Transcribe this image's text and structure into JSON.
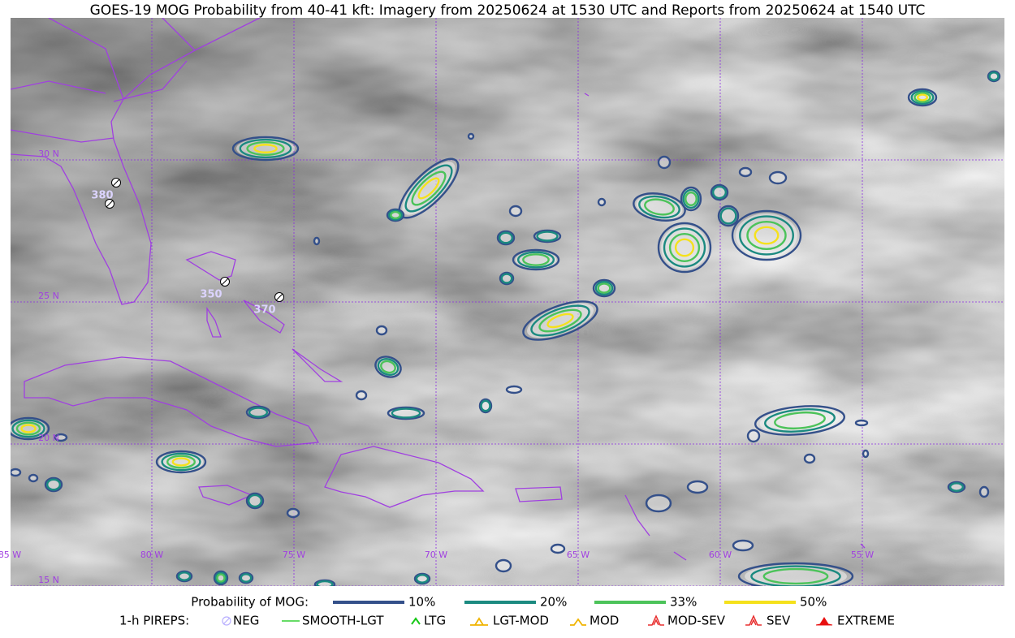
{
  "title": "GOES-19 MOG Probability from 40-41 kft: Imagery from 20250624 at 1530 UTC and Reports from 20250624 at 1540 UTC",
  "map": {
    "lat_labels": [
      "30 N",
      "25 N",
      "20 N",
      "15 N"
    ],
    "lon_labels": [
      "85 W",
      "80 W",
      "75 W",
      "70 W",
      "65 W",
      "60 W",
      "55 W"
    ],
    "pirep_altitudes": [
      "380",
      "350",
      "370"
    ]
  },
  "legend": {
    "probability_title": "Probability of MOG:",
    "probability_levels": [
      {
        "label": "10%",
        "color": "#34508a"
      },
      {
        "label": "20%",
        "color": "#1b8a80"
      },
      {
        "label": "33%",
        "color": "#4cc35a"
      },
      {
        "label": "50%",
        "color": "#f5e11c"
      }
    ],
    "pireps_title": "1-h PIREPS:",
    "pirep_types": [
      "NEG",
      "SMOOTH-LGT",
      "LTG",
      "LGT-MOD",
      "MOD",
      "MOD-SEV",
      "SEV",
      "EXTREME"
    ]
  }
}
